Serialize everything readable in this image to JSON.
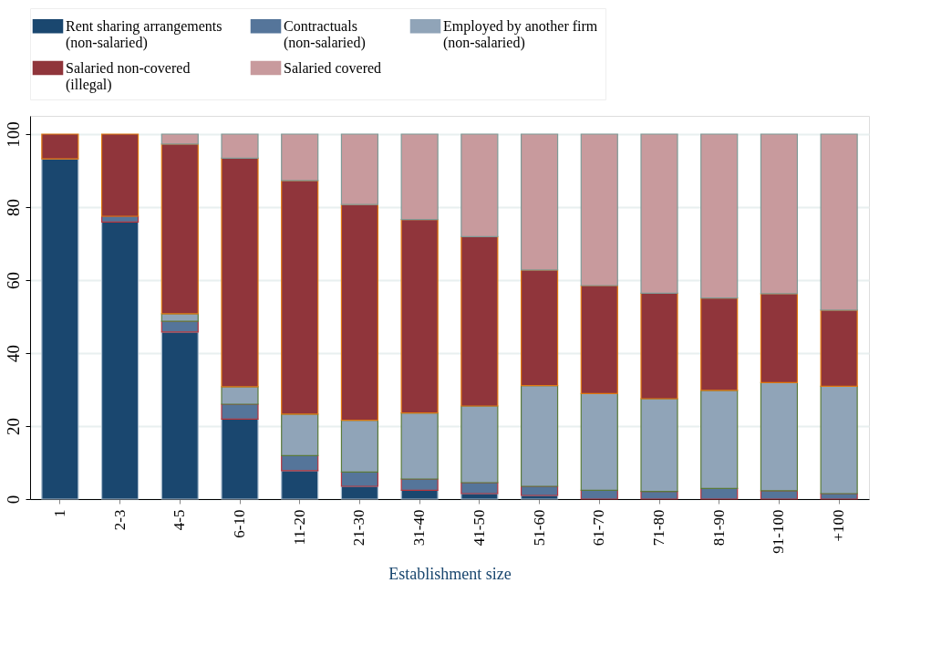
{
  "chart_data": {
    "type": "bar",
    "stacked": true,
    "xlabel": "Establishment size",
    "categories": [
      "1",
      "2-3",
      "4-5",
      "6-10",
      "11-20",
      "21-30",
      "31-40",
      "41-50",
      "51-60",
      "61-70",
      "71-80",
      "81-90",
      "91-100",
      "+100"
    ],
    "series": [
      {
        "name": "Rent sharing arrangements\n(non-salaried)",
        "color": "#1a476f",
        "values": [
          93.2,
          75.9,
          45.8,
          21.9,
          7.8,
          3.5,
          2.4,
          1.5,
          1.0,
          0,
          0,
          0,
          0,
          0
        ]
      },
      {
        "name": "Contractuals\n(non-salaried)",
        "color": "#55759a",
        "values": [
          0,
          1.6,
          2.9,
          4.1,
          4.1,
          3.9,
          3.1,
          3.0,
          2.5,
          2.4,
          2.1,
          2.9,
          2.3,
          1.5
        ]
      },
      {
        "name": "Employed by another firm\n(non-salaried)",
        "color": "#90a4b8",
        "values": [
          0,
          0,
          2.1,
          4.8,
          11.4,
          14.2,
          18.1,
          21.0,
          27.6,
          26.5,
          25.4,
          26.9,
          29.6,
          29.4
        ]
      },
      {
        "name": "Salaried non-covered\n(illegal)",
        "color": "#90353b",
        "values": [
          6.8,
          22.5,
          46.5,
          62.6,
          64.0,
          59.1,
          53.0,
          46.4,
          31.7,
          29.6,
          28.9,
          25.3,
          24.4,
          20.9
        ]
      },
      {
        "name": "Salaried covered",
        "color": "#c89a9d",
        "values": [
          0,
          0,
          2.7,
          6.6,
          12.7,
          19.3,
          23.4,
          28.1,
          37.2,
          41.5,
          43.6,
          44.9,
          43.7,
          48.2
        ]
      }
    ],
    "ylim": [
      0,
      105
    ],
    "yticks": [
      0,
      20,
      40,
      60,
      80,
      100
    ],
    "grid": "y",
    "legend": "top"
  }
}
